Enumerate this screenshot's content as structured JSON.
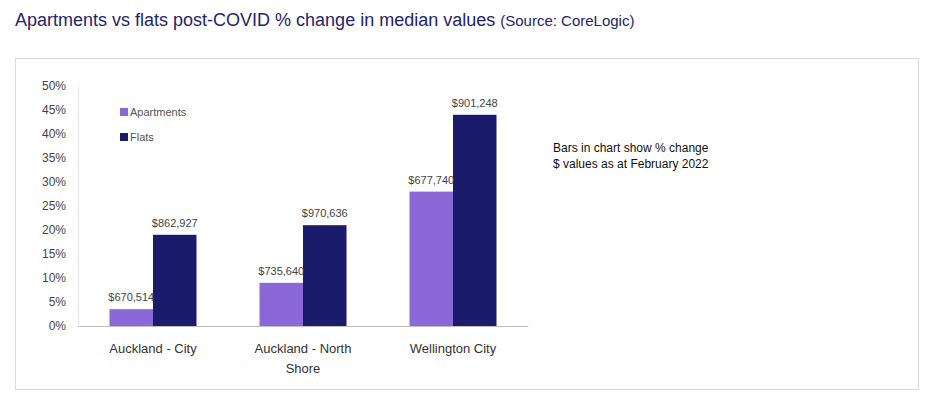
{
  "chart_data": {
    "type": "bar",
    "title": "Apartments vs flats post-COVID % change in median values",
    "subtitle": "(Source: CoreLogic)",
    "annotations": [
      "Bars in chart show % change",
      "$ values as at February 2022"
    ],
    "categories": [
      "Auckland - City",
      "Auckland - North Shore",
      "Wellington City"
    ],
    "series": [
      {
        "name": "Apartments",
        "color": "#8a68d8",
        "values": [
          3.5,
          9,
          28
        ],
        "median_values": [
          "$670,514",
          "$735,640",
          "$677,740"
        ]
      },
      {
        "name": "Flats",
        "color": "#1b1b6b",
        "values": [
          19,
          21,
          44
        ],
        "median_values": [
          "$862,927",
          "$970,636",
          "$901,248"
        ]
      }
    ],
    "ylim": [
      0,
      50
    ],
    "yticks": [
      {
        "value": 0,
        "label": "0%"
      },
      {
        "value": 5,
        "label": "5%"
      },
      {
        "value": 10,
        "label": "10%"
      },
      {
        "value": 15,
        "label": "15%"
      },
      {
        "value": 20,
        "label": "20%"
      },
      {
        "value": 25,
        "label": "25%"
      },
      {
        "value": 30,
        "label": "30%"
      },
      {
        "value": 35,
        "label": "35%"
      },
      {
        "value": 40,
        "label": "40%"
      },
      {
        "value": 45,
        "label": "45%"
      },
      {
        "value": 50,
        "label": "50%"
      }
    ],
    "grid": false,
    "legend": "top-left"
  }
}
